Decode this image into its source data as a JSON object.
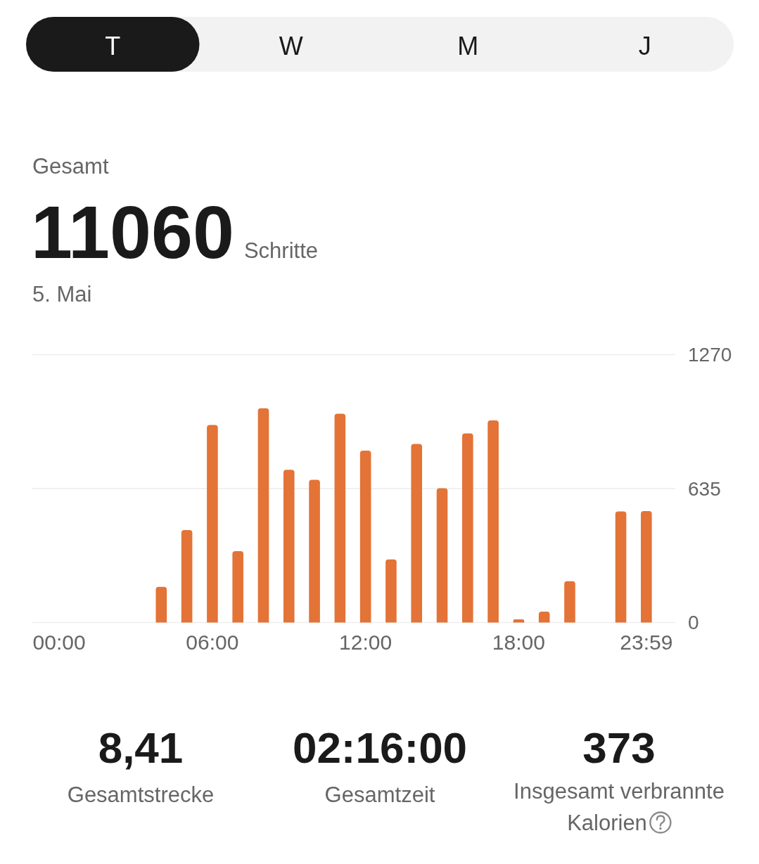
{
  "chart_data": {
    "type": "bar",
    "categories": [
      "00:00",
      null,
      null,
      null,
      null,
      null,
      "06:00",
      null,
      null,
      null,
      null,
      null,
      "12:00",
      null,
      null,
      null,
      null,
      null,
      "18:00",
      null,
      null,
      null,
      null,
      "23:59"
    ],
    "values": [
      null,
      null,
      null,
      null,
      169,
      438,
      937,
      338,
      1016,
      724,
      677,
      990,
      815,
      299,
      847,
      637,
      897,
      958,
      15,
      52,
      196,
      null,
      527,
      528
    ],
    "color": "#e37336",
    "ylim": [
      0,
      1270
    ],
    "yticks": [
      0,
      635,
      1270
    ],
    "grid": "y",
    "annotations": [
      "T",
      "W",
      "M",
      "J",
      "Gesamt",
      "11060",
      "Schritte",
      "5. Mai",
      "8,41",
      "Gesamtstrecke",
      "02:16:00",
      "Gesamtzeit",
      "373",
      "Insgesamt verbrannte Kalorien"
    ]
  }
}
